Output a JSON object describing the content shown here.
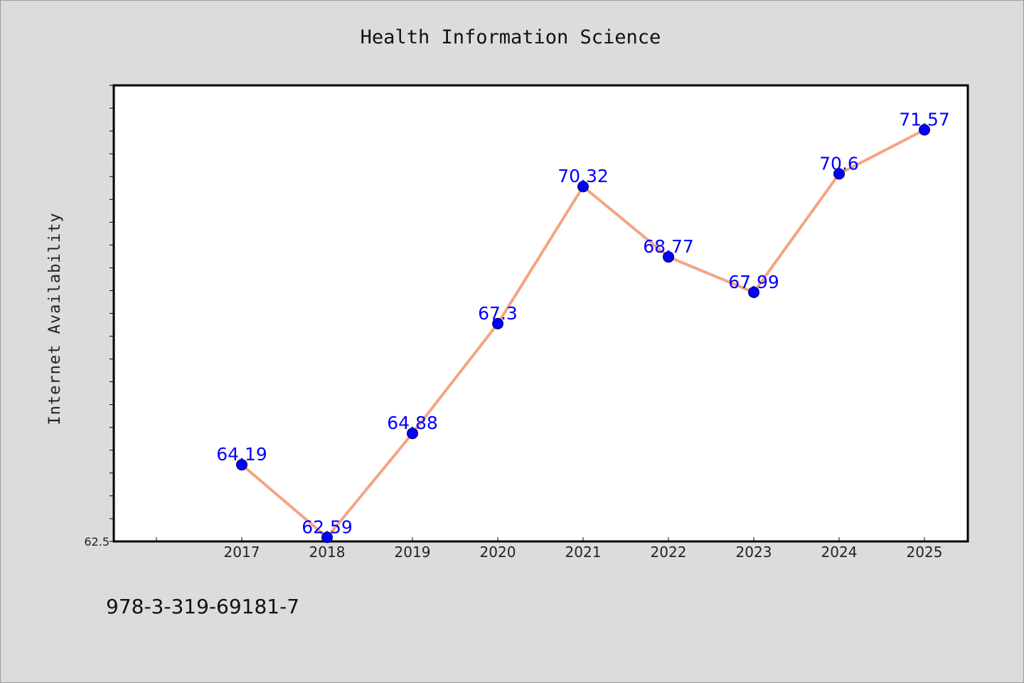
{
  "chart_data": {
    "type": "line",
    "title": "Health Information Science",
    "xlabel": "",
    "ylabel": "Internet Availability",
    "categories": [
      "2017",
      "2018",
      "2019",
      "2020",
      "2021",
      "2022",
      "2023",
      "2024",
      "2025"
    ],
    "series": [
      {
        "values": [
          64.19,
          62.59,
          64.88,
          67.3,
          70.32,
          68.77,
          67.99,
          70.6,
          71.57
        ]
      }
    ],
    "data_labels": [
      "64.19",
      "62.59",
      "64.88",
      "67.3",
      "70.32",
      "68.77",
      "67.99",
      "70.6",
      "71.57"
    ],
    "ylim": [
      62.5,
      72.55
    ],
    "yticks_labeled": [
      "62.5"
    ],
    "grid": false,
    "colors": {
      "line": "#f4a582",
      "marker": "#0000ff",
      "label": "#0000ff",
      "background": "#dcdcdc",
      "plot_bg": "#ffffff"
    }
  },
  "footer": {
    "text": "978-3-319-69181-7"
  }
}
